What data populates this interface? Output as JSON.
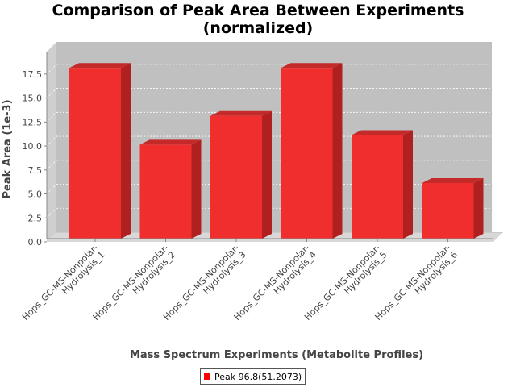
{
  "chart_data": {
    "type": "bar",
    "title": [
      "Comparison of Peak Area Between Experiments",
      "(normalized)"
    ],
    "xlabel": "Mass Spectrum Experiments (Metabolite Profiles)",
    "ylabel": "Peak Area (1e-3)",
    "categories": [
      [
        "Hops_GC-MS-Nonpolar-",
        "Hydrolysis_1"
      ],
      [
        "Hops_GC-MS-Nonpolar-",
        "Hydrolysis_2"
      ],
      [
        "Hops_GC-MS-Nonpolar-",
        "Hydrolysis_3"
      ],
      [
        "Hops_GC-MS-Nonpolar-",
        "Hydrolysis_4"
      ],
      [
        "Hops_GC-MS-Nonpolar-",
        "Hydrolysis_5"
      ],
      [
        "Hops_GC-MS-Nonpolar-",
        "Hydrolysis_6"
      ]
    ],
    "series": [
      {
        "name": "Peak 96.8(51.2073)",
        "values": [
          17.8,
          9.8,
          12.8,
          17.8,
          10.8,
          5.8
        ],
        "color": "#ff0000"
      }
    ],
    "yticks": [
      "0.0",
      "2.5",
      "5.0",
      "7.5",
      "10.0",
      "12.5",
      "15.0",
      "17.5"
    ],
    "ylim": [
      0,
      19
    ],
    "grid": true,
    "legend_position": "bottom"
  }
}
